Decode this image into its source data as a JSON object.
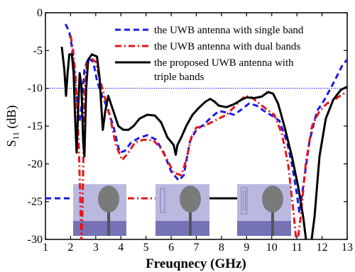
{
  "chart_data": {
    "type": "line",
    "xlabel": "Freuqnecy (GHz)",
    "ylabel": "S",
    "ylabel_sub": "11",
    "ylabel_unit": " (dB)",
    "xlim": [
      1,
      13
    ],
    "ylim": [
      -30,
      0
    ],
    "xticks": [
      1,
      2,
      3,
      4,
      5,
      6,
      7,
      8,
      9,
      10,
      11,
      12,
      13
    ],
    "yticks": [
      0,
      -5,
      -10,
      -15,
      -20,
      -25,
      -30
    ],
    "reference_line": -10,
    "grid": false,
    "legend_position": "top-right",
    "series": [
      {
        "name": "the UWB antenna with single band",
        "color": "#1a1aee",
        "style": "dashed",
        "points": [
          [
            1.8,
            -1.5
          ],
          [
            1.95,
            -2.5
          ],
          [
            2.05,
            -4.5
          ],
          [
            2.15,
            -8
          ],
          [
            2.25,
            -11.5
          ],
          [
            2.35,
            -14.5
          ],
          [
            2.45,
            -12
          ],
          [
            2.55,
            -7.5
          ],
          [
            2.7,
            -6
          ],
          [
            2.9,
            -6.5
          ],
          [
            3.05,
            -9
          ],
          [
            3.25,
            -11
          ],
          [
            3.45,
            -12.5
          ],
          [
            3.7,
            -15
          ],
          [
            3.95,
            -18.5
          ],
          [
            4.15,
            -18.3
          ],
          [
            4.4,
            -17.2
          ],
          [
            4.7,
            -16.6
          ],
          [
            5.05,
            -16.2
          ],
          [
            5.4,
            -16.8
          ],
          [
            5.7,
            -18.5
          ],
          [
            6.0,
            -21
          ],
          [
            6.3,
            -22.2
          ],
          [
            6.5,
            -21.5
          ],
          [
            6.75,
            -17
          ],
          [
            7.0,
            -15.5
          ],
          [
            7.3,
            -14.8
          ],
          [
            7.6,
            -13.8
          ],
          [
            7.9,
            -13
          ],
          [
            8.2,
            -13.2
          ],
          [
            8.5,
            -13.5
          ],
          [
            8.8,
            -12.8
          ],
          [
            9.1,
            -12
          ],
          [
            9.4,
            -12.3
          ],
          [
            9.7,
            -13
          ],
          [
            10.0,
            -13.6
          ],
          [
            10.3,
            -14.3
          ],
          [
            10.6,
            -17
          ],
          [
            10.8,
            -20
          ],
          [
            11.0,
            -24
          ],
          [
            11.1,
            -26.5
          ],
          [
            11.25,
            -23
          ],
          [
            11.5,
            -17
          ],
          [
            11.8,
            -13
          ],
          [
            12.1,
            -11.5
          ],
          [
            12.5,
            -9
          ],
          [
            12.8,
            -7
          ],
          [
            13.0,
            -6.2
          ]
        ]
      },
      {
        "name": "the UWB antenna with dual bands",
        "color": "#e8141a",
        "style": "dashdot",
        "points": [
          [
            2.0,
            -3
          ],
          [
            2.1,
            -5
          ],
          [
            2.2,
            -8.5
          ],
          [
            2.28,
            -14
          ],
          [
            2.33,
            -18
          ],
          [
            2.38,
            -24
          ],
          [
            2.43,
            -31
          ],
          [
            2.48,
            -25
          ],
          [
            2.55,
            -11
          ],
          [
            2.65,
            -6.5
          ],
          [
            2.8,
            -6
          ],
          [
            3.0,
            -6.5
          ],
          [
            3.1,
            -8
          ],
          [
            3.3,
            -10.5
          ],
          [
            3.55,
            -13.5
          ],
          [
            3.8,
            -17.5
          ],
          [
            4.05,
            -19.5
          ],
          [
            4.3,
            -18.5
          ],
          [
            4.55,
            -17.2
          ],
          [
            4.9,
            -16.8
          ],
          [
            5.3,
            -16.9
          ],
          [
            5.6,
            -18
          ],
          [
            5.85,
            -19.5
          ],
          [
            6.1,
            -21.2
          ],
          [
            6.4,
            -21.5
          ],
          [
            6.6,
            -19.5
          ],
          [
            6.8,
            -16.5
          ],
          [
            7.0,
            -15.2
          ],
          [
            7.3,
            -15
          ],
          [
            7.6,
            -14.5
          ],
          [
            7.9,
            -14
          ],
          [
            8.2,
            -13.5
          ],
          [
            8.5,
            -12.5
          ],
          [
            8.75,
            -11.6
          ],
          [
            8.95,
            -11
          ],
          [
            9.2,
            -11.2
          ],
          [
            9.5,
            -12
          ],
          [
            9.8,
            -12.8
          ],
          [
            10.1,
            -13.5
          ],
          [
            10.4,
            -16
          ],
          [
            10.65,
            -20
          ],
          [
            10.85,
            -26
          ],
          [
            11.0,
            -31
          ],
          [
            11.15,
            -27
          ],
          [
            11.35,
            -20
          ],
          [
            11.6,
            -15
          ],
          [
            11.9,
            -13
          ],
          [
            12.2,
            -12
          ],
          [
            12.5,
            -11.5
          ],
          [
            12.8,
            -10.8
          ],
          [
            13.0,
            -10.5
          ]
        ]
      },
      {
        "name": "the proposed UWB antenna with triple bands",
        "color": "#000000",
        "style": "solid",
        "points": [
          [
            1.65,
            -4.5
          ],
          [
            1.75,
            -7.5
          ],
          [
            1.82,
            -11
          ],
          [
            1.88,
            -8
          ],
          [
            1.95,
            -5.5
          ],
          [
            2.05,
            -5.5
          ],
          [
            2.12,
            -8
          ],
          [
            2.18,
            -14
          ],
          [
            2.24,
            -18.5
          ],
          [
            2.3,
            -13
          ],
          [
            2.36,
            -8
          ],
          [
            2.43,
            -9.5
          ],
          [
            2.5,
            -17
          ],
          [
            2.55,
            -19
          ],
          [
            2.62,
            -10
          ],
          [
            2.7,
            -6.2
          ],
          [
            2.85,
            -5.5
          ],
          [
            3.05,
            -5.8
          ],
          [
            3.15,
            -8.5
          ],
          [
            3.28,
            -15.5
          ],
          [
            3.38,
            -13
          ],
          [
            3.5,
            -11
          ],
          [
            3.7,
            -13
          ],
          [
            3.9,
            -15
          ],
          [
            4.1,
            -15.5
          ],
          [
            4.3,
            -15.5
          ],
          [
            4.5,
            -15
          ],
          [
            4.75,
            -14
          ],
          [
            5.05,
            -13.5
          ],
          [
            5.35,
            -13.6
          ],
          [
            5.6,
            -14.5
          ],
          [
            5.85,
            -16.5
          ],
          [
            6.1,
            -17.5
          ],
          [
            6.18,
            -18.8
          ],
          [
            6.25,
            -17.5
          ],
          [
            6.4,
            -16.5
          ],
          [
            6.6,
            -15
          ],
          [
            6.85,
            -13.5
          ],
          [
            7.1,
            -12.6
          ],
          [
            7.35,
            -11.8
          ],
          [
            7.55,
            -11.4
          ],
          [
            7.7,
            -11.7
          ],
          [
            7.9,
            -12.3
          ],
          [
            8.2,
            -12.5
          ],
          [
            8.5,
            -12.1
          ],
          [
            8.8,
            -11.5
          ],
          [
            9.0,
            -11.2
          ],
          [
            9.3,
            -11.3
          ],
          [
            9.6,
            -11.1
          ],
          [
            9.85,
            -10.5
          ],
          [
            10.05,
            -10.7
          ],
          [
            10.25,
            -12
          ],
          [
            10.5,
            -15
          ],
          [
            10.8,
            -19
          ],
          [
            11.05,
            -23
          ],
          [
            11.25,
            -27
          ],
          [
            11.4,
            -31
          ],
          [
            11.55,
            -31
          ],
          [
            11.7,
            -27
          ],
          [
            11.9,
            -19
          ],
          [
            12.15,
            -14
          ],
          [
            12.45,
            -11.5
          ],
          [
            12.75,
            -10.2
          ],
          [
            13.0,
            -9.8
          ]
        ]
      }
    ]
  },
  "legend_lines": [
    [
      "the UWB antenna with single band"
    ],
    [
      "the UWB antenna with dual bands"
    ],
    [
      "the proposed UWB antenna with",
      "triple bands"
    ]
  ]
}
